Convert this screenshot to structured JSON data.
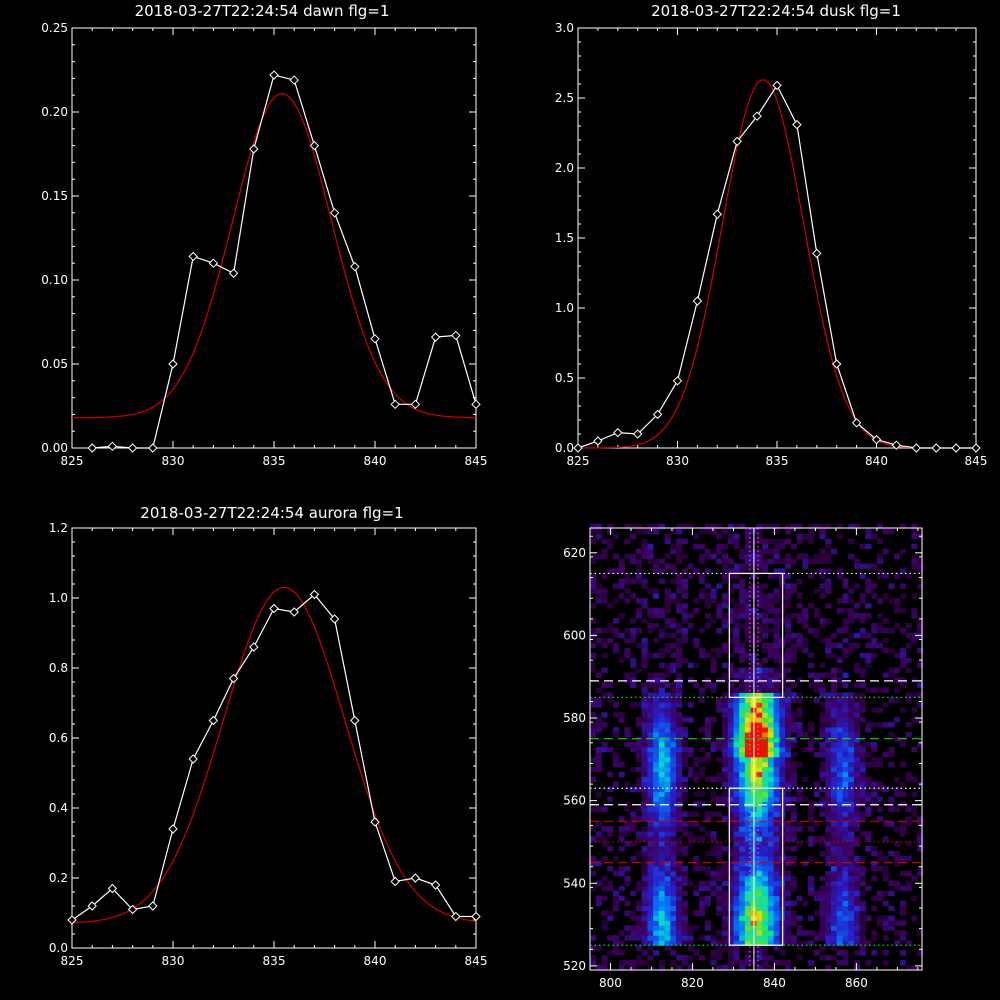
{
  "colors": {
    "background": "#000000",
    "foreground": "#ffffff",
    "fit": "#d00000",
    "green_line": "#00dd00",
    "red_line": "#cc0000"
  },
  "chart_data": [
    {
      "type": "line",
      "title": "2018-03-27T22:24:54 dawn flg=1",
      "xlim": [
        825,
        845
      ],
      "ylim": [
        0,
        0.25
      ],
      "xticks": [
        825,
        830,
        835,
        840,
        845
      ],
      "yticks": [
        0.0,
        0.05,
        0.1,
        0.15,
        0.2,
        0.25
      ],
      "ytick_labels": [
        "0.00",
        "0.05",
        "0.10",
        "0.15",
        "0.20",
        "0.25"
      ],
      "series": [
        {
          "style": "data-with-diamonds",
          "x": [
            826,
            827,
            828,
            829,
            830,
            831,
            832,
            833,
            834,
            835,
            836,
            837,
            838,
            839,
            840,
            841,
            842,
            843,
            844,
            845
          ],
          "y": [
            0.0,
            0.001,
            0.0,
            0.0,
            0.05,
            0.114,
            0.11,
            0.104,
            0.178,
            0.222,
            0.219,
            0.18,
            0.14,
            0.108,
            0.065,
            0.026,
            0.026,
            0.066,
            0.067,
            0.026
          ]
        },
        {
          "style": "gaussian-fit",
          "gaussian": {
            "amplitude": 0.193,
            "center": 835.4,
            "sigma": 2.45,
            "offset": 0.018
          }
        }
      ]
    },
    {
      "type": "line",
      "title": "2018-03-27T22:24:54 dusk flg=1",
      "xlim": [
        825,
        845
      ],
      "ylim": [
        0,
        3.0
      ],
      "xticks": [
        825,
        830,
        835,
        840,
        845
      ],
      "yticks": [
        0.0,
        0.5,
        1.0,
        1.5,
        2.0,
        2.5,
        3.0
      ],
      "ytick_labels": [
        "0.0",
        "0.5",
        "1.0",
        "1.5",
        "2.0",
        "2.5",
        "3.0"
      ],
      "series": [
        {
          "style": "data-with-diamonds",
          "x": [
            825,
            826,
            827,
            828,
            829,
            830,
            831,
            832,
            833,
            834,
            835,
            836,
            837,
            838,
            839,
            840,
            841,
            842,
            843,
            844,
            845
          ],
          "y": [
            0.0,
            0.05,
            0.11,
            0.1,
            0.24,
            0.48,
            1.05,
            1.67,
            2.19,
            2.37,
            2.59,
            2.31,
            1.39,
            0.6,
            0.18,
            0.06,
            0.02,
            0.0,
            0.0,
            0.0,
            0.0
          ]
        },
        {
          "style": "gaussian-fit",
          "gaussian": {
            "amplitude": 2.63,
            "center": 834.3,
            "sigma": 2.05,
            "offset": 0.0
          }
        }
      ]
    },
    {
      "type": "line",
      "title": "2018-03-27T22:24:54 aurora flg=1",
      "xlim": [
        825,
        845
      ],
      "ylim": [
        0,
        1.2
      ],
      "xticks": [
        825,
        830,
        835,
        840,
        845
      ],
      "yticks": [
        0.0,
        0.2,
        0.4,
        0.6,
        0.8,
        1.0,
        1.2
      ],
      "ytick_labels": [
        "0.0",
        "0.2",
        "0.4",
        "0.6",
        "0.8",
        "1.0",
        "1.2"
      ],
      "series": [
        {
          "style": "data-with-diamonds",
          "x": [
            825,
            826,
            827,
            828,
            829,
            830,
            831,
            832,
            833,
            834,
            835,
            836,
            837,
            838,
            839,
            840,
            841,
            842,
            843,
            844,
            845
          ],
          "y": [
            0.08,
            0.12,
            0.17,
            0.11,
            0.12,
            0.34,
            0.54,
            0.65,
            0.77,
            0.86,
            0.97,
            0.96,
            1.01,
            0.94,
            0.65,
            0.36,
            0.19,
            0.2,
            0.18,
            0.09,
            0.09
          ]
        },
        {
          "style": "gaussian-fit",
          "gaussian": {
            "amplitude": 0.96,
            "center": 835.5,
            "sigma": 3.0,
            "offset": 0.07
          }
        }
      ]
    },
    {
      "type": "heatmap",
      "title": "",
      "xlim": [
        795,
        876
      ],
      "ylim": [
        519,
        626
      ],
      "xticks": [
        800,
        820,
        840,
        860
      ],
      "yticks": [
        520,
        540,
        560,
        580,
        600,
        620
      ],
      "colormap": "rainbow-on-black",
      "emission_bands": [
        {
          "center_x": 812,
          "width": 6,
          "y_range": [
            525,
            590
          ],
          "peak": 0.6
        },
        {
          "center_x": 835,
          "width": 8,
          "y_range": [
            525,
            592
          ],
          "peak": 1.0
        },
        {
          "center_x": 856,
          "width": 6,
          "y_range": [
            525,
            590
          ],
          "peak": 0.4
        }
      ],
      "boxes": [
        {
          "x": [
            829,
            842
          ],
          "y": [
            585,
            615
          ]
        },
        {
          "x": [
            829,
            842
          ],
          "y": [
            525,
            563
          ]
        }
      ],
      "vertical_lines": [
        {
          "x": 834,
          "style": "dotted",
          "color": "#ff66ff"
        },
        {
          "x": 836,
          "style": "dotted",
          "color": "#ff66ff"
        },
        {
          "x": 835,
          "style": "solid",
          "color": "#ffffff"
        }
      ],
      "horizontal_lines": [
        {
          "y": 615,
          "style": "dotted",
          "color": "#ffffff"
        },
        {
          "y": 589,
          "style": "dashed",
          "color": "#ffffff"
        },
        {
          "y": 585,
          "style": "dotted",
          "color": "#00dd00"
        },
        {
          "y": 575,
          "style": "dashed",
          "color": "#00dd00"
        },
        {
          "y": 563,
          "style": "dotted",
          "color": "#ffffff"
        },
        {
          "y": 559,
          "style": "dashed",
          "color": "#ffffff"
        },
        {
          "y": 555,
          "style": "dashed",
          "color": "#cc0000"
        },
        {
          "y": 550,
          "style": "dotted",
          "color": "#cc0000"
        },
        {
          "y": 545,
          "style": "dashed",
          "color": "#cc0000"
        },
        {
          "y": 525,
          "style": "dotted",
          "color": "#00dd00"
        }
      ]
    }
  ]
}
